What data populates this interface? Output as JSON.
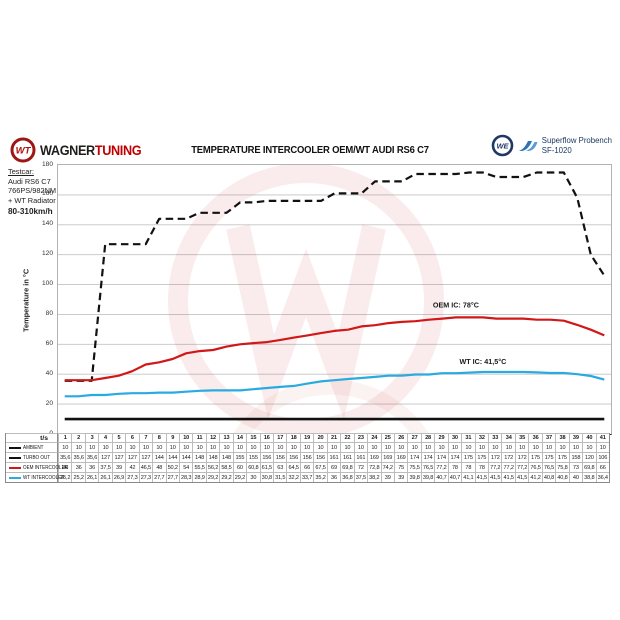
{
  "header": {
    "brand": {
      "badge": "WT",
      "name_left": "WAGNER",
      "name_right": "TUNING"
    },
    "title": "TEMPERATURE INTERCOOLER OEM/WT AUDI RS6 C7",
    "superflow": {
      "badge": "WE",
      "name": "Superflow Probench",
      "model": "SF-1020"
    }
  },
  "testcar": {
    "heading": "Testcar:",
    "lines": [
      "Audi RS6 C7",
      "766PS/982NM",
      "+ WT Radiator"
    ],
    "speed_range": "80-310km/h"
  },
  "chart_data": {
    "type": "line",
    "title": "TEMPERATURE INTERCOOLER OEM/WT AUDI RS6 C7",
    "xlabel": "t/s",
    "ylabel": "Temperature in °C",
    "ylim": [
      0,
      180
    ],
    "ytick_step": 20,
    "grid": true,
    "legend_position": "table-left",
    "decimal_separator": ",",
    "x": [
      1,
      2,
      3,
      4,
      5,
      6,
      7,
      8,
      9,
      10,
      11,
      12,
      13,
      14,
      15,
      16,
      17,
      18,
      19,
      20,
      21,
      22,
      23,
      24,
      25,
      26,
      27,
      28,
      29,
      30,
      31,
      32,
      33,
      34,
      35,
      36,
      37,
      38,
      39,
      40,
      41
    ],
    "series": [
      {
        "name": "AMBIENT",
        "color": "#111111",
        "style": "solid",
        "values": [
          "10",
          "10",
          "10",
          "10",
          "10",
          "10",
          "10",
          "10",
          "10",
          "10",
          "10",
          "10",
          "10",
          "10",
          "10",
          "10",
          "10",
          "10",
          "10",
          "10",
          "10",
          "10",
          "10",
          "10",
          "10",
          "10",
          "10",
          "10",
          "10",
          "10",
          "10",
          "10",
          "10",
          "10",
          "10",
          "10",
          "10",
          "10",
          "10",
          "10",
          "10"
        ]
      },
      {
        "name": "TURBO OUT",
        "color": "#111111",
        "style": "dashed",
        "values": [
          "35,6",
          "35,6",
          "35,6",
          "127",
          "127",
          "127",
          "127",
          "144",
          "144",
          "144",
          "148",
          "148",
          "148",
          "155",
          "155",
          "156",
          "156",
          "156",
          "156",
          "156",
          "161",
          "161",
          "161",
          "169",
          "169",
          "169",
          "174",
          "174",
          "174",
          "174",
          "175",
          "175",
          "172",
          "172",
          "172",
          "175",
          "175",
          "175",
          "158",
          "120",
          "106"
        ]
      },
      {
        "name": "OEM INTERCOOLER",
        "color": "#d01818",
        "style": "solid",
        "values": [
          "36",
          "36",
          "36",
          "37,5",
          "39",
          "42",
          "46,5",
          "48",
          "50,2",
          "54",
          "55,5",
          "56,2",
          "58,5",
          "60",
          "60,8",
          "61,5",
          "63",
          "64,5",
          "66",
          "67,5",
          "69",
          "69,8",
          "72",
          "72,8",
          "74,2",
          "75",
          "75,5",
          "76,5",
          "77,2",
          "78",
          "78",
          "78",
          "77,2",
          "77,2",
          "77,2",
          "76,5",
          "76,5",
          "75,8",
          "73",
          "69,8",
          "66"
        ]
      },
      {
        "name": "WT INTERCOOLER",
        "color": "#2aabdf",
        "style": "solid",
        "values": [
          "25,2",
          "25,2",
          "26,1",
          "26,1",
          "26,9",
          "27,3",
          "27,3",
          "27,7",
          "27,7",
          "28,3",
          "28,9",
          "29,2",
          "29,2",
          "29,2",
          "30",
          "30,8",
          "31,5",
          "32,2",
          "33,7",
          "35,2",
          "36",
          "36,8",
          "37,5",
          "38,2",
          "39",
          "39",
          "39,8",
          "39,8",
          "40,7",
          "40,7",
          "41,1",
          "41,5",
          "41,5",
          "41,5",
          "41,5",
          "41,2",
          "40,8",
          "40,8",
          "40",
          "38,8",
          "36,4"
        ]
      }
    ],
    "annotations": [
      {
        "text": "OEM IC: 78°C",
        "t": 30,
        "value": 84.5
      },
      {
        "text": "WT IC: 41,5°C",
        "t": 32,
        "value": 47
      }
    ]
  }
}
